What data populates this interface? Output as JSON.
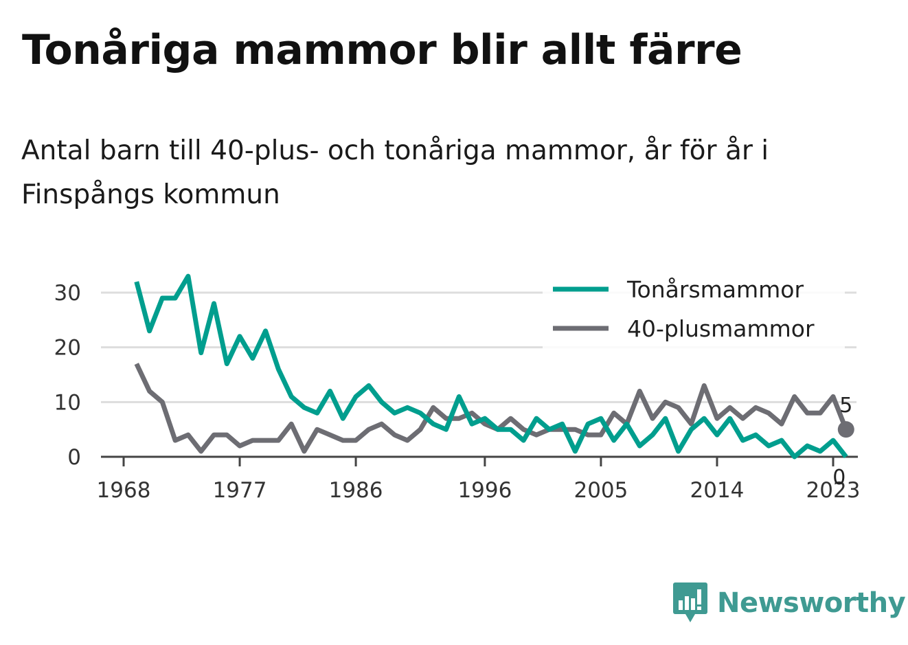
{
  "title": "Tonåriga mammor blir allt färre",
  "subtitle": "Antal barn till 40-plus- och tonåriga mammor, år för år i Finspångs kommun",
  "brand": "Newsworthy",
  "colors": {
    "teen": "#009e8e",
    "plus40": "#6d6d73",
    "grid": "#dddddd",
    "axis": "#444444",
    "brand": "#3f9a92"
  },
  "chart_data": {
    "type": "line",
    "x_ticks": [
      1968,
      1977,
      1986,
      1996,
      2005,
      2014,
      2023
    ],
    "y_ticks": [
      0,
      10,
      20,
      30
    ],
    "ylim": [
      0,
      35
    ],
    "xlim": [
      1968,
      2024
    ],
    "grid": true,
    "legend_position": "top-right",
    "x": [
      1969,
      1970,
      1971,
      1972,
      1973,
      1974,
      1975,
      1976,
      1977,
      1978,
      1979,
      1980,
      1981,
      1982,
      1983,
      1984,
      1985,
      1986,
      1987,
      1988,
      1989,
      1990,
      1991,
      1992,
      1993,
      1994,
      1995,
      1996,
      1997,
      1998,
      1999,
      2000,
      2001,
      2002,
      2003,
      2004,
      2005,
      2006,
      2007,
      2008,
      2009,
      2010,
      2011,
      2012,
      2013,
      2014,
      2015,
      2016,
      2017,
      2018,
      2019,
      2020,
      2021,
      2022,
      2023,
      2024
    ],
    "series": [
      {
        "name": "Tonårsmammor",
        "color": "#009e8e",
        "values": [
          32,
          23,
          29,
          29,
          33,
          19,
          28,
          17,
          22,
          18,
          23,
          16,
          11,
          9,
          8,
          12,
          7,
          11,
          13,
          10,
          8,
          9,
          8,
          6,
          5,
          11,
          6,
          7,
          5,
          5,
          3,
          7,
          5,
          6,
          1,
          6,
          7,
          3,
          6,
          2,
          4,
          7,
          1,
          5,
          7,
          4,
          7,
          3,
          4,
          2,
          3,
          0,
          2,
          1,
          3,
          0
        ]
      },
      {
        "name": "40-plusmammor",
        "color": "#6d6d73",
        "values": [
          17,
          12,
          10,
          3,
          4,
          1,
          4,
          4,
          2,
          3,
          3,
          3,
          6,
          1,
          5,
          4,
          3,
          3,
          5,
          6,
          4,
          3,
          5,
          9,
          7,
          7,
          8,
          6,
          5,
          7,
          5,
          4,
          5,
          5,
          5,
          4,
          4,
          8,
          6,
          12,
          7,
          10,
          9,
          6,
          13,
          7,
          9,
          7,
          9,
          8,
          6,
          11,
          8,
          8,
          11,
          5
        ]
      }
    ],
    "end_labels": [
      {
        "series": "40-plusmammor",
        "text": "5"
      },
      {
        "series": "Tonårsmammor",
        "text": "0"
      }
    ]
  }
}
